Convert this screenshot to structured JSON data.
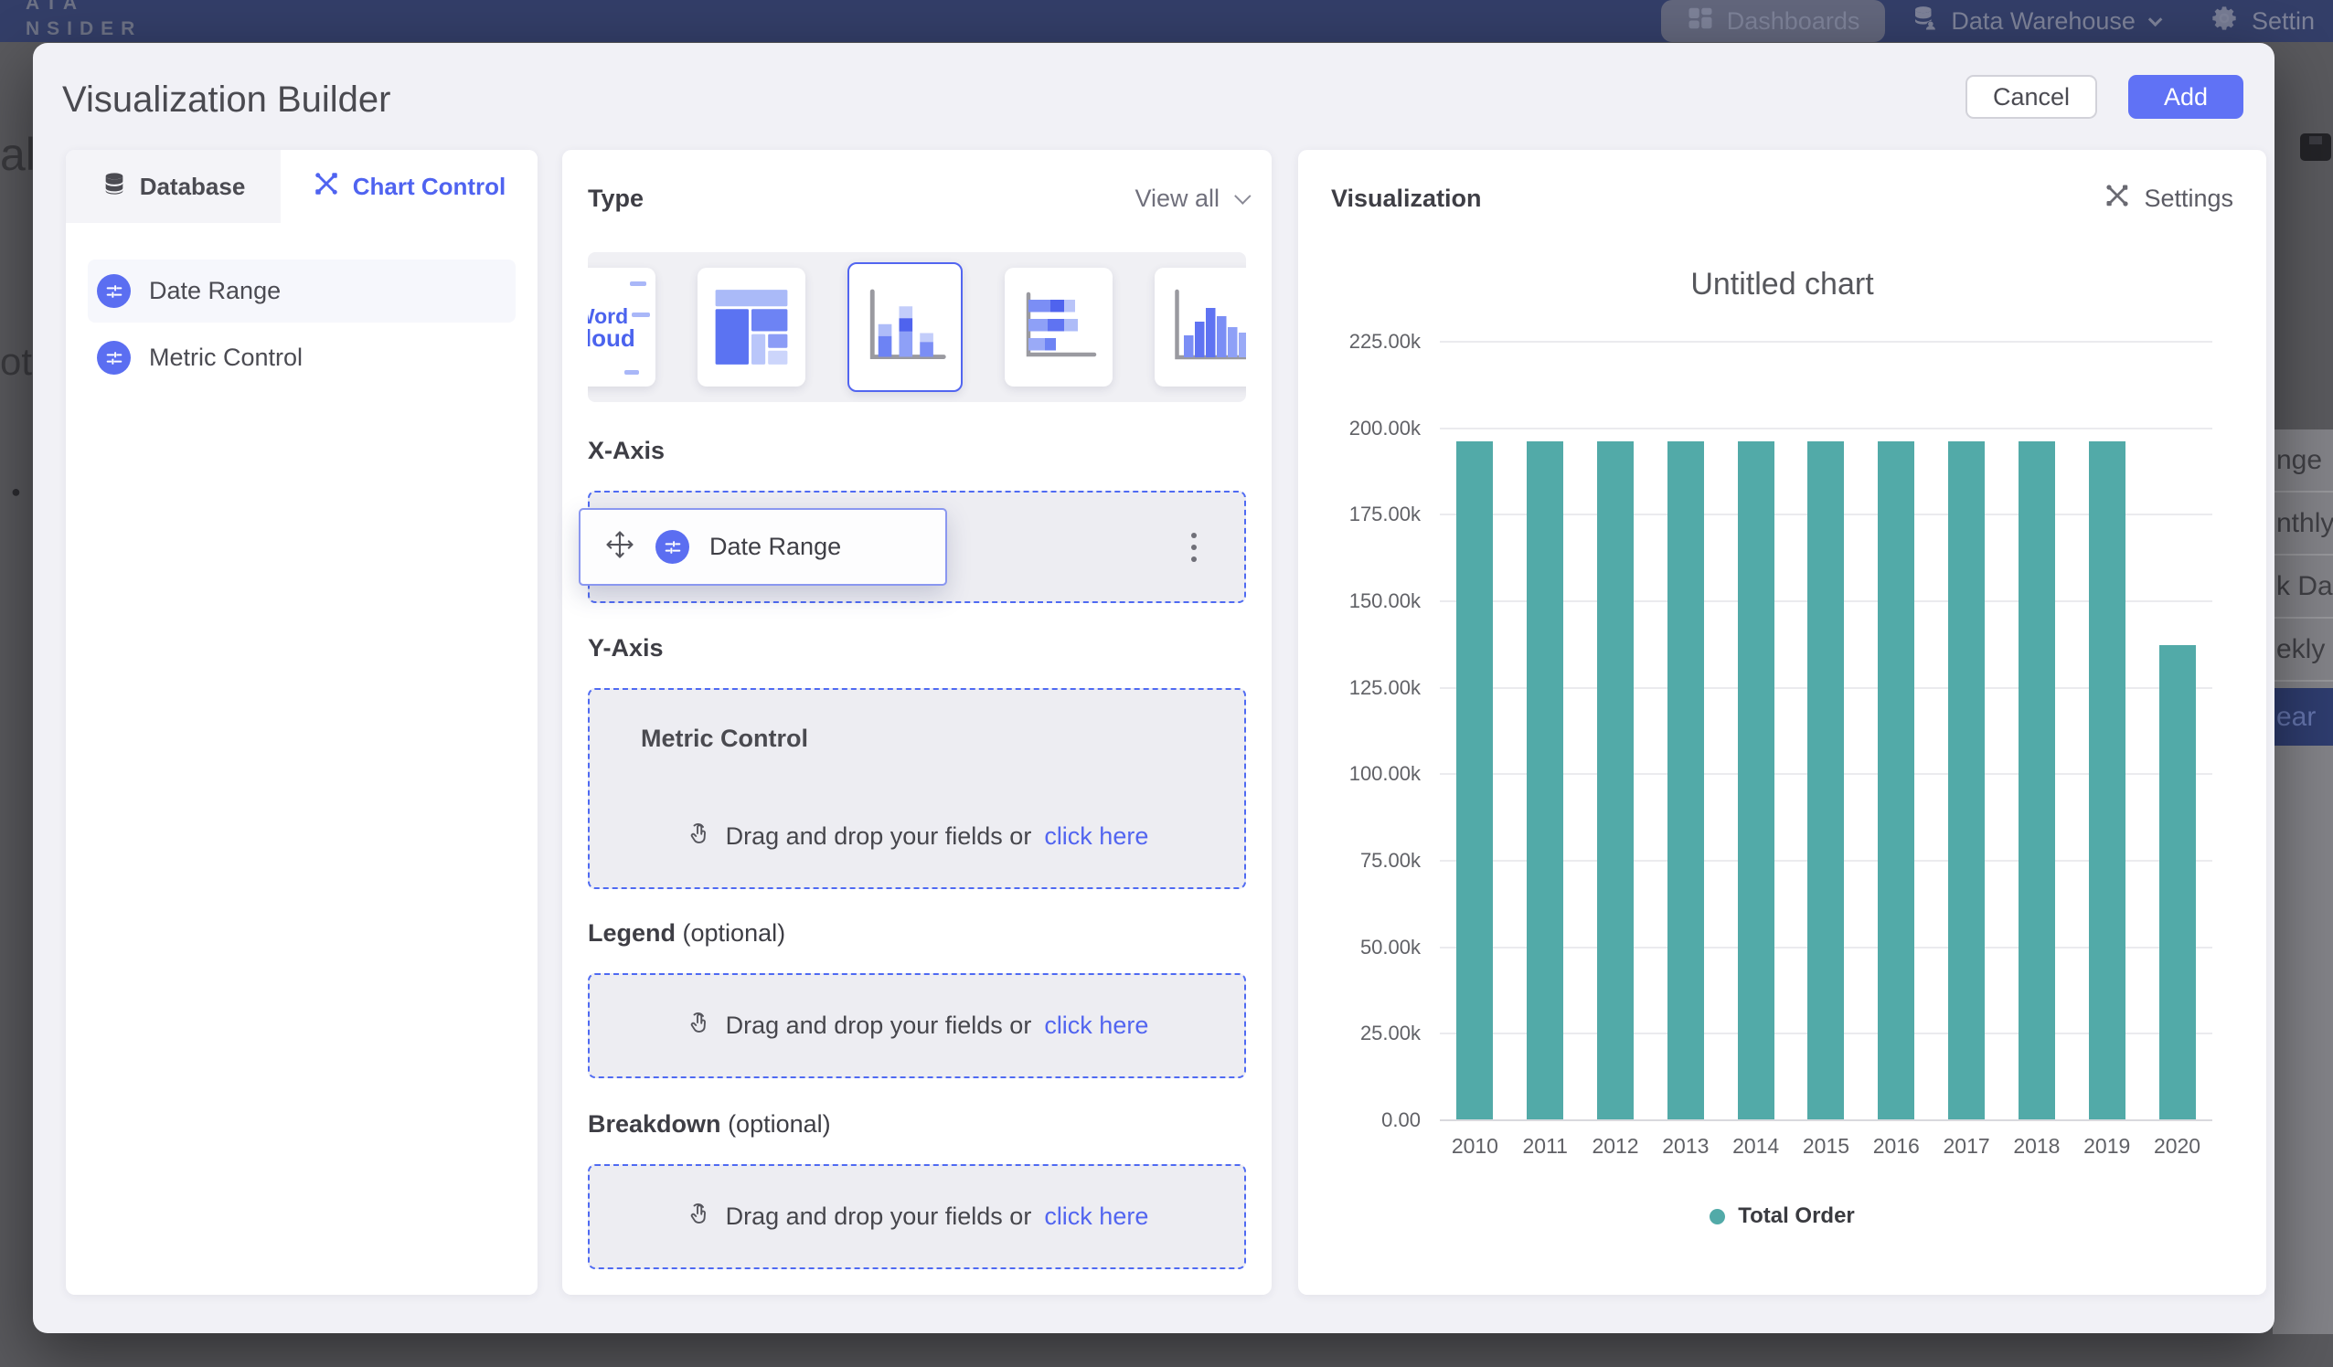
{
  "backdrop": {
    "topbar": {
      "logo_line1": "ATA",
      "logo_line2": "NSIDER",
      "nav": [
        {
          "label": "Dashboards",
          "icon": "dashboards-icon"
        },
        {
          "label": "Data Warehouse",
          "icon": "data-warehouse-icon"
        },
        {
          "label": "Settin",
          "icon": "gear-icon"
        }
      ]
    },
    "left_fragments": {
      "f1": "al",
      "f2": "ota",
      "bullet": "●"
    },
    "right_list": {
      "items": [
        "nge",
        "nthly",
        "k Date",
        "ekly",
        "ear"
      ],
      "active_index": 4
    }
  },
  "modal": {
    "title": "Visualization Builder",
    "buttons": {
      "cancel": "Cancel",
      "add": "Add"
    },
    "left_panel": {
      "tabs": [
        {
          "label": "Database",
          "active": false
        },
        {
          "label": "Chart Control",
          "active": true
        }
      ],
      "fields": [
        {
          "label": "Date Range",
          "highlighted": true
        },
        {
          "label": "Metric Control",
          "highlighted": false
        }
      ]
    },
    "builder": {
      "type_label": "Type",
      "view_all_label": "View all",
      "thumbnails": [
        {
          "name": "word-cloud",
          "word1": "Word",
          "word2": "Cloud",
          "selected": false
        },
        {
          "name": "treemap",
          "selected": false
        },
        {
          "name": "stacked-column",
          "selected": true
        },
        {
          "name": "stacked-bar-horizontal",
          "selected": false
        },
        {
          "name": "column",
          "selected": false
        }
      ],
      "x_axis": {
        "heading": "X-Axis",
        "chip_label": "Date Range",
        "ghost_label": "Date Range"
      },
      "y_axis": {
        "heading": "Y-Axis",
        "group_label": "Metric Control"
      },
      "legend": {
        "heading": "Legend",
        "optional": "(optional)"
      },
      "breakdown": {
        "heading": "Breakdown",
        "optional": "(optional)"
      },
      "drop_text": "Drag and drop your fields or",
      "drop_link": "click here"
    },
    "viz_panel": {
      "heading": "Visualization",
      "settings_label": "Settings"
    }
  },
  "chart_data": {
    "type": "bar",
    "title": "Untitled chart",
    "categories": [
      "2010",
      "2011",
      "2012",
      "2013",
      "2014",
      "2015",
      "2016",
      "2017",
      "2018",
      "2019",
      "2020"
    ],
    "series": [
      {
        "name": "Total Order",
        "values": [
          196000,
          196000,
          196000,
          196000,
          196000,
          196000,
          196000,
          196000,
          196000,
          196000,
          137000
        ]
      }
    ],
    "ylim": [
      0,
      225000
    ],
    "ytick_step": 25000,
    "ytick_labels": [
      "0.00",
      "25.00k",
      "50.00k",
      "75.00k",
      "100.00k",
      "125.00k",
      "150.00k",
      "175.00k",
      "200.00k",
      "225.00k"
    ],
    "xlabel": "",
    "ylabel": "",
    "grid": true,
    "legend_position": "bottom",
    "bar_color": "#52aaa8"
  },
  "colors": {
    "accent": "#5265f0",
    "add_button": "#6072f5",
    "bar": "#52aaa8",
    "dashed_border": "#4f6af2",
    "topbar": "#333e68",
    "modal_bg": "#f1f1f6"
  }
}
